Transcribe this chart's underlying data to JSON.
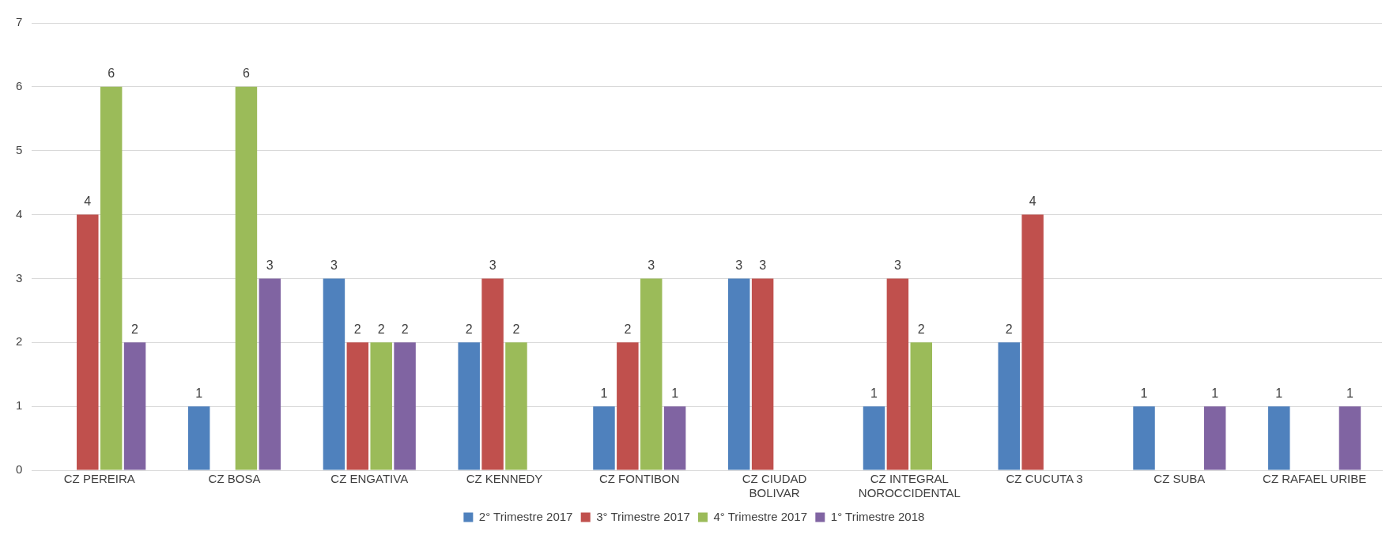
{
  "chart_data": {
    "type": "bar",
    "categories": [
      "CZ PEREIRA",
      "CZ BOSA",
      "CZ ENGATIVA",
      "CZ KENNEDY",
      "CZ FONTIBON",
      "CZ CIUDAD BOLIVAR",
      "CZ INTEGRAL NOROCCIDENTAL",
      "CZ CUCUTA 3",
      "CZ SUBA",
      "CZ RAFAEL URIBE"
    ],
    "series": [
      {
        "name": "2° Trimestre 2017",
        "color": "#4f81bd",
        "values": [
          null,
          1,
          3,
          2,
          1,
          3,
          1,
          2,
          1,
          1
        ]
      },
      {
        "name": "3° Trimestre 2017",
        "color": "#c0504d",
        "values": [
          4,
          null,
          2,
          3,
          2,
          3,
          3,
          4,
          null,
          null
        ]
      },
      {
        "name": "4° Trimestre 2017",
        "color": "#9bbb59",
        "values": [
          6,
          6,
          2,
          2,
          3,
          null,
          2,
          null,
          null,
          null
        ]
      },
      {
        "name": "1° Trimestre 2018",
        "color": "#8064a2",
        "values": [
          2,
          3,
          2,
          null,
          1,
          null,
          null,
          null,
          1,
          1
        ]
      }
    ],
    "ylim": [
      0,
      7
    ],
    "yticks": [
      0,
      1,
      2,
      3,
      4,
      5,
      6,
      7
    ],
    "grid": "y",
    "legend": "bottom",
    "data_labels": true
  }
}
